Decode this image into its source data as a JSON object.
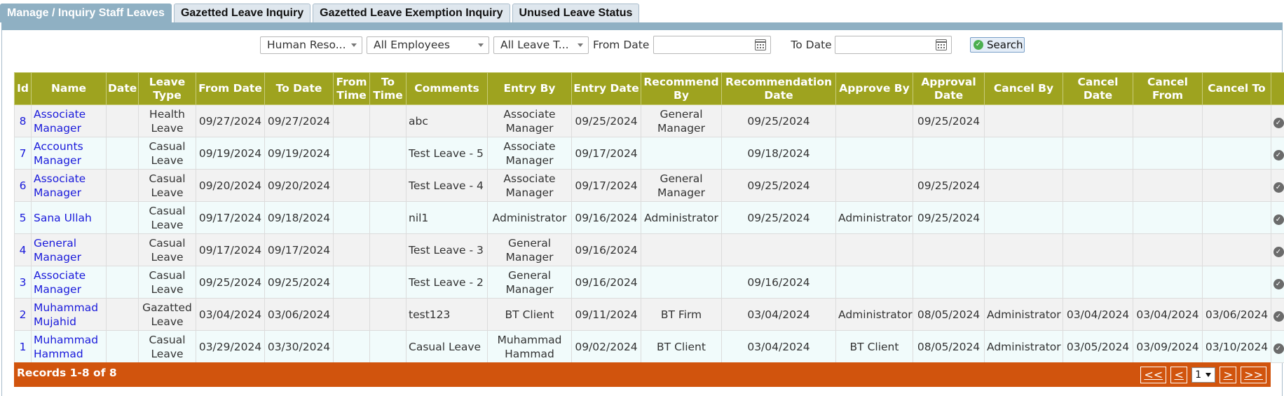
{
  "tabs": [
    {
      "label": "Manage / Inquiry Staff Leaves"
    },
    {
      "label": "Gazetted Leave Inquiry"
    },
    {
      "label": "Gazetted Leave Exemption Inquiry"
    },
    {
      "label": "Unused Leave Status"
    }
  ],
  "filters": {
    "department": "Human Reso...",
    "employee": "All Employees",
    "leave_type": "All Leave T...",
    "from_date_label": "From Date",
    "from_date_value": "",
    "to_date_label": "To Date",
    "to_date_value": "",
    "search_label": "Search"
  },
  "table": {
    "headers": [
      "Id",
      "Name",
      "Date",
      "Leave Type",
      "From Date",
      "To Date",
      "From Time",
      "To Time",
      "Comments",
      "Entry By",
      "Entry Date",
      "Recommend By",
      "Recommendation Date",
      "Approve By",
      "Approval Date",
      "Cancel By",
      "Cancel Date",
      "Cancel From",
      "Cancel To",
      ""
    ],
    "rows": [
      {
        "id": "8",
        "name": "Associate Manager",
        "date": "",
        "leave_type": "Health Leave",
        "from_date": "09/27/2024",
        "to_date": "09/27/2024",
        "from_time": "",
        "to_time": "",
        "comments": "abc",
        "entry_by": "Associate Manager",
        "entry_date": "09/25/2024",
        "recommend_by": "General Manager",
        "recommendation_date": "09/25/2024",
        "approve_by": "",
        "approval_date": "09/25/2024",
        "cancel_by": "",
        "cancel_date": "",
        "cancel_from": "",
        "cancel_to": ""
      },
      {
        "id": "7",
        "name": "Accounts Manager",
        "date": "",
        "leave_type": "Casual Leave",
        "from_date": "09/19/2024",
        "to_date": "09/19/2024",
        "from_time": "",
        "to_time": "",
        "comments": "Test Leave - 5",
        "entry_by": "Associate Manager",
        "entry_date": "09/17/2024",
        "recommend_by": "",
        "recommendation_date": "09/18/2024",
        "approve_by": "",
        "approval_date": "",
        "cancel_by": "",
        "cancel_date": "",
        "cancel_from": "",
        "cancel_to": ""
      },
      {
        "id": "6",
        "name": "Associate Manager",
        "date": "",
        "leave_type": "Casual Leave",
        "from_date": "09/20/2024",
        "to_date": "09/20/2024",
        "from_time": "",
        "to_time": "",
        "comments": "Test Leave - 4",
        "entry_by": "Associate Manager",
        "entry_date": "09/17/2024",
        "recommend_by": "General Manager",
        "recommendation_date": "09/25/2024",
        "approve_by": "",
        "approval_date": "09/25/2024",
        "cancel_by": "",
        "cancel_date": "",
        "cancel_from": "",
        "cancel_to": ""
      },
      {
        "id": "5",
        "name": "Sana Ullah",
        "date": "",
        "leave_type": "Casual Leave",
        "from_date": "09/17/2024",
        "to_date": "09/18/2024",
        "from_time": "",
        "to_time": "",
        "comments": "nil1",
        "entry_by": "Administrator",
        "entry_date": "09/16/2024",
        "recommend_by": "Administrator",
        "recommendation_date": "09/25/2024",
        "approve_by": "Administrator",
        "approval_date": "09/25/2024",
        "cancel_by": "",
        "cancel_date": "",
        "cancel_from": "",
        "cancel_to": ""
      },
      {
        "id": "4",
        "name": "General Manager",
        "date": "",
        "leave_type": "Casual Leave",
        "from_date": "09/17/2024",
        "to_date": "09/17/2024",
        "from_time": "",
        "to_time": "",
        "comments": "Test Leave - 3",
        "entry_by": "General Manager",
        "entry_date": "09/16/2024",
        "recommend_by": "",
        "recommendation_date": "",
        "approve_by": "",
        "approval_date": "",
        "cancel_by": "",
        "cancel_date": "",
        "cancel_from": "",
        "cancel_to": ""
      },
      {
        "id": "3",
        "name": "Associate Manager",
        "date": "",
        "leave_type": "Casual Leave",
        "from_date": "09/25/2024",
        "to_date": "09/25/2024",
        "from_time": "",
        "to_time": "",
        "comments": "Test Leave - 2",
        "entry_by": "General Manager",
        "entry_date": "09/16/2024",
        "recommend_by": "",
        "recommendation_date": "09/16/2024",
        "approve_by": "",
        "approval_date": "",
        "cancel_by": "",
        "cancel_date": "",
        "cancel_from": "",
        "cancel_to": ""
      },
      {
        "id": "2",
        "name": "Muhammad Mujahid",
        "date": "",
        "leave_type": "Gazatted Leave",
        "from_date": "03/04/2024",
        "to_date": "03/06/2024",
        "from_time": "",
        "to_time": "",
        "comments": "test123",
        "entry_by": "BT Client",
        "entry_date": "09/11/2024",
        "recommend_by": "BT Firm",
        "recommendation_date": "03/04/2024",
        "approve_by": "Administrator",
        "approval_date": "08/05/2024",
        "cancel_by": "Administrator",
        "cancel_date": "03/04/2024",
        "cancel_from": "03/04/2024",
        "cancel_to": "03/06/2024"
      },
      {
        "id": "1",
        "name": "Muhammad Hammad",
        "date": "",
        "leave_type": "Casual Leave",
        "from_date": "03/29/2024",
        "to_date": "03/30/2024",
        "from_time": "",
        "to_time": "",
        "comments": "Casual Leave",
        "entry_by": "Muhammad Hammad",
        "entry_date": "09/02/2024",
        "recommend_by": "BT Client",
        "recommendation_date": "03/04/2024",
        "approve_by": "BT Client",
        "approval_date": "08/05/2024",
        "cancel_by": "Administrator",
        "cancel_date": "03/05/2024",
        "cancel_from": "03/09/2024",
        "cancel_to": "03/10/2024"
      }
    ]
  },
  "footer": {
    "records_text": "Records 1-8 of 8",
    "first": "<<",
    "prev": "<",
    "page": "1",
    "next": ">",
    "last": ">>"
  },
  "colors": {
    "tab_active": "#8fb0c3",
    "header_bg": "#9ea31f",
    "footer_bg": "#d1540d",
    "link": "#1a1adb"
  }
}
